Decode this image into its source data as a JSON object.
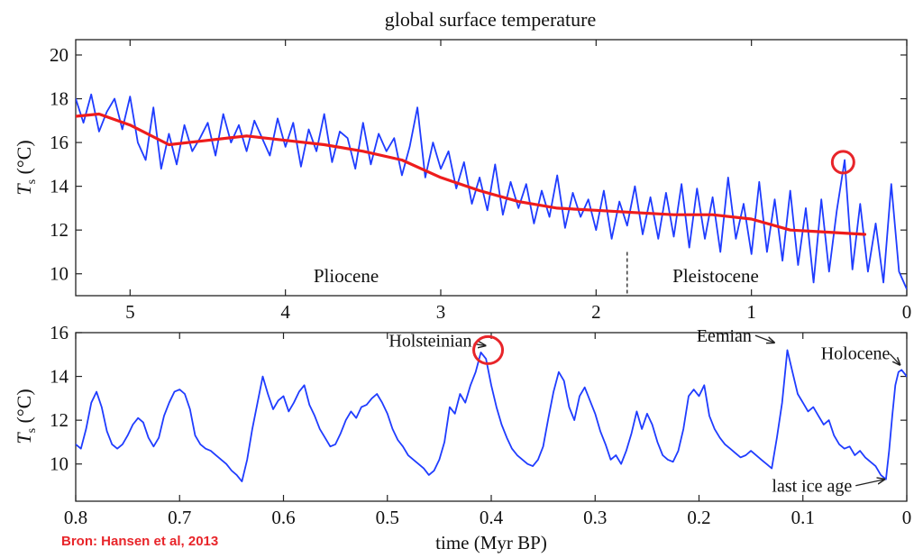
{
  "source_note": "Bron: Hansen et al, 2013",
  "colors": {
    "line": "#1f3cff",
    "trend": "#ee1c1c",
    "circle": "#e8252a",
    "axes": "#222222"
  },
  "chart_data": [
    {
      "type": "line",
      "title": "global surface temperature",
      "xlabel": "",
      "ylabel": "T_s (°C)",
      "ylabel_main": "T",
      "ylabel_sub": "s",
      "ylabel_unit": " (°C)",
      "xlim": [
        5.35,
        0
      ],
      "ylim": [
        9,
        20.7
      ],
      "xticks": [
        5,
        4,
        3,
        2,
        1,
        0
      ],
      "yticks": [
        10,
        12,
        14,
        16,
        18,
        20
      ],
      "grid": false,
      "era_labels": [
        "Pliocene",
        "Pleistocene"
      ],
      "era_boundary": 1.8,
      "series": [
        {
          "kind": "raw",
          "x": [
            5.35,
            5.3,
            5.25,
            5.2,
            5.15,
            5.1,
            5.05,
            5.0,
            4.95,
            4.9,
            4.85,
            4.8,
            4.75,
            4.7,
            4.65,
            4.6,
            4.55,
            4.5,
            4.45,
            4.4,
            4.35,
            4.3,
            4.25,
            4.2,
            4.15,
            4.1,
            4.05,
            4.0,
            3.95,
            3.9,
            3.85,
            3.8,
            3.75,
            3.7,
            3.65,
            3.6,
            3.55,
            3.5,
            3.45,
            3.4,
            3.35,
            3.3,
            3.25,
            3.2,
            3.15,
            3.1,
            3.05,
            3.0,
            2.95,
            2.9,
            2.85,
            2.8,
            2.75,
            2.7,
            2.65,
            2.6,
            2.55,
            2.5,
            2.45,
            2.4,
            2.35,
            2.3,
            2.25,
            2.2,
            2.15,
            2.1,
            2.05,
            2.0,
            1.95,
            1.9,
            1.85,
            1.8,
            1.75,
            1.7,
            1.65,
            1.6,
            1.55,
            1.5,
            1.45,
            1.4,
            1.35,
            1.3,
            1.25,
            1.2,
            1.15,
            1.1,
            1.05,
            1.0,
            0.95,
            0.9,
            0.85,
            0.8,
            0.75,
            0.7,
            0.65,
            0.6,
            0.55,
            0.5,
            0.45,
            0.4,
            0.35,
            0.3,
            0.25,
            0.2,
            0.15,
            0.1,
            0.05,
            0.0
          ],
          "y": [
            18.0,
            16.9,
            18.2,
            16.5,
            17.4,
            18.0,
            16.6,
            18.1,
            16.0,
            15.2,
            17.6,
            14.8,
            16.4,
            15.0,
            16.8,
            15.6,
            16.2,
            16.9,
            15.4,
            17.3,
            16.0,
            16.8,
            15.6,
            17.0,
            16.2,
            15.4,
            17.1,
            15.8,
            16.9,
            14.9,
            16.6,
            15.6,
            17.3,
            15.1,
            16.5,
            16.2,
            14.8,
            16.9,
            15.0,
            16.4,
            15.6,
            16.2,
            14.5,
            15.8,
            17.6,
            14.4,
            16.0,
            14.8,
            15.6,
            13.9,
            15.1,
            13.2,
            14.4,
            12.9,
            15.0,
            12.7,
            14.2,
            13.0,
            14.1,
            12.3,
            13.8,
            12.6,
            14.5,
            12.1,
            13.7,
            12.6,
            13.4,
            12.0,
            13.8,
            11.6,
            13.3,
            12.2,
            14.0,
            11.8,
            13.5,
            11.6,
            13.7,
            11.7,
            14.1,
            11.2,
            13.9,
            11.6,
            13.5,
            11.0,
            14.4,
            11.6,
            13.2,
            10.9,
            14.2,
            11.0,
            13.4,
            10.6,
            13.8,
            10.4,
            13.0,
            9.6,
            13.4,
            10.1,
            12.9,
            15.2,
            10.2,
            13.2,
            10.1,
            12.3,
            9.6,
            14.1,
            10.1,
            9.3
          ]
        },
        {
          "kind": "trend",
          "x": [
            5.35,
            5.2,
            5.0,
            4.75,
            4.5,
            4.25,
            4.0,
            3.75,
            3.5,
            3.25,
            3.0,
            2.75,
            2.5,
            2.25,
            2.0,
            1.75,
            1.5,
            1.25,
            1.0,
            0.75,
            0.5,
            0.27
          ],
          "y": [
            17.2,
            17.3,
            16.8,
            15.9,
            16.1,
            16.3,
            16.1,
            15.9,
            15.6,
            15.2,
            14.4,
            13.8,
            13.3,
            13.0,
            12.9,
            12.8,
            12.7,
            12.7,
            12.5,
            12.0,
            11.9,
            11.8
          ]
        }
      ],
      "highlight": {
        "x": 0.41,
        "y": 15.1
      }
    },
    {
      "type": "line",
      "title": "",
      "xlabel": "time (Myr BP)",
      "ylabel": "T_s (°C)",
      "ylabel_main": "T",
      "ylabel_sub": "s",
      "ylabel_unit": " (°C)",
      "xlim": [
        0.8,
        0
      ],
      "ylim": [
        8.3,
        16
      ],
      "xticks": [
        0.8,
        0.7,
        0.6,
        0.5,
        0.4,
        0.3,
        0.2,
        0.1,
        0
      ],
      "yticks": [
        10,
        12,
        14,
        16
      ],
      "grid": false,
      "series": [
        {
          "kind": "raw",
          "x": [
            0.8,
            0.795,
            0.79,
            0.785,
            0.78,
            0.775,
            0.77,
            0.765,
            0.76,
            0.755,
            0.75,
            0.745,
            0.74,
            0.735,
            0.73,
            0.725,
            0.72,
            0.715,
            0.71,
            0.705,
            0.7,
            0.695,
            0.69,
            0.685,
            0.68,
            0.675,
            0.67,
            0.665,
            0.66,
            0.655,
            0.65,
            0.645,
            0.64,
            0.635,
            0.63,
            0.625,
            0.62,
            0.615,
            0.61,
            0.605,
            0.6,
            0.595,
            0.59,
            0.585,
            0.58,
            0.575,
            0.57,
            0.565,
            0.56,
            0.555,
            0.55,
            0.545,
            0.54,
            0.535,
            0.53,
            0.525,
            0.52,
            0.515,
            0.51,
            0.505,
            0.5,
            0.495,
            0.49,
            0.485,
            0.48,
            0.475,
            0.47,
            0.465,
            0.46,
            0.455,
            0.45,
            0.445,
            0.44,
            0.435,
            0.43,
            0.425,
            0.42,
            0.415,
            0.41,
            0.405,
            0.4,
            0.395,
            0.39,
            0.385,
            0.38,
            0.375,
            0.37,
            0.365,
            0.36,
            0.355,
            0.35,
            0.345,
            0.34,
            0.335,
            0.33,
            0.325,
            0.32,
            0.315,
            0.31,
            0.305,
            0.3,
            0.295,
            0.29,
            0.285,
            0.28,
            0.275,
            0.27,
            0.265,
            0.26,
            0.255,
            0.25,
            0.245,
            0.24,
            0.235,
            0.23,
            0.225,
            0.22,
            0.215,
            0.21,
            0.205,
            0.2,
            0.195,
            0.19,
            0.185,
            0.18,
            0.175,
            0.17,
            0.165,
            0.16,
            0.155,
            0.15,
            0.145,
            0.14,
            0.135,
            0.13,
            0.125,
            0.12,
            0.115,
            0.11,
            0.105,
            0.1,
            0.095,
            0.09,
            0.085,
            0.08,
            0.075,
            0.07,
            0.065,
            0.06,
            0.055,
            0.05,
            0.045,
            0.04,
            0.035,
            0.03,
            0.025,
            0.02,
            0.017,
            0.014,
            0.011,
            0.008,
            0.005,
            0.0
          ],
          "y": [
            10.9,
            10.7,
            11.6,
            12.8,
            13.3,
            12.6,
            11.5,
            10.9,
            10.7,
            10.9,
            11.3,
            11.8,
            12.1,
            11.9,
            11.2,
            10.8,
            11.2,
            12.2,
            12.8,
            13.3,
            13.4,
            13.2,
            12.5,
            11.3,
            10.9,
            10.7,
            10.6,
            10.4,
            10.2,
            10.0,
            9.7,
            9.5,
            9.2,
            10.2,
            11.6,
            12.8,
            14.0,
            13.2,
            12.5,
            12.9,
            13.1,
            12.4,
            12.8,
            13.3,
            13.6,
            12.7,
            12.2,
            11.6,
            11.2,
            10.8,
            10.9,
            11.4,
            12.0,
            12.4,
            12.1,
            12.6,
            12.7,
            13.0,
            13.2,
            12.8,
            12.3,
            11.6,
            11.1,
            10.8,
            10.4,
            10.2,
            10.0,
            9.8,
            9.5,
            9.7,
            10.2,
            11.0,
            12.6,
            12.3,
            13.2,
            12.8,
            13.6,
            14.2,
            15.1,
            14.8,
            13.6,
            12.6,
            11.8,
            11.2,
            10.7,
            10.4,
            10.2,
            10.0,
            9.9,
            10.2,
            10.8,
            12.1,
            13.3,
            14.2,
            13.8,
            12.6,
            12.0,
            13.1,
            13.5,
            12.9,
            12.3,
            11.5,
            10.9,
            10.2,
            10.4,
            10.0,
            10.6,
            11.4,
            12.4,
            11.6,
            12.3,
            11.8,
            11.0,
            10.4,
            10.2,
            10.1,
            10.6,
            11.6,
            13.1,
            13.4,
            13.1,
            13.6,
            12.2,
            11.6,
            11.2,
            10.9,
            10.7,
            10.5,
            10.3,
            10.4,
            10.6,
            10.4,
            10.2,
            10.0,
            9.8,
            11.2,
            12.8,
            15.2,
            14.2,
            13.2,
            12.8,
            12.4,
            12.6,
            12.2,
            11.8,
            12.0,
            11.3,
            10.9,
            10.7,
            10.8,
            10.4,
            10.6,
            10.3,
            10.1,
            9.9,
            9.5,
            9.3,
            10.6,
            12.2,
            13.6,
            14.2,
            14.3,
            14.0
          ]
        }
      ],
      "highlight": {
        "x": 0.403,
        "y": 15.2
      },
      "annotations": [
        {
          "label": "Holsteinian",
          "x": 0.403,
          "y": 15.2
        },
        {
          "label": "Eemian",
          "x": 0.125,
          "y": 15.5
        },
        {
          "label": "Holocene",
          "x": 0.004,
          "y": 14.2
        },
        {
          "label": "last ice age",
          "x": 0.018,
          "y": 9.3
        }
      ]
    }
  ]
}
